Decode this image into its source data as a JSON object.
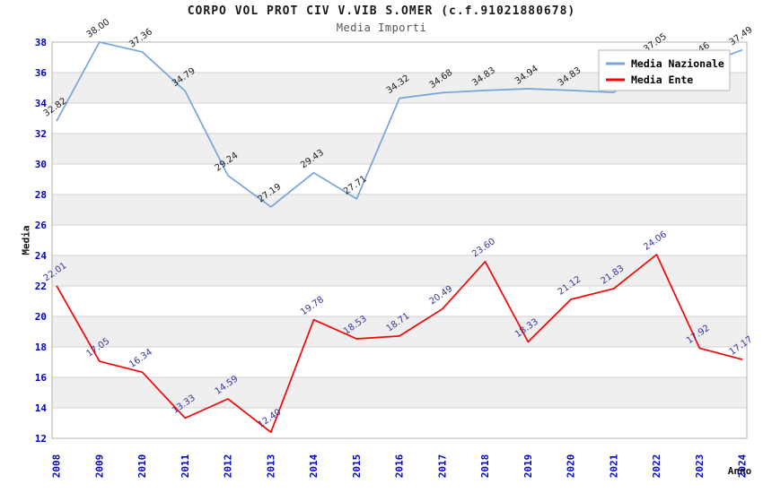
{
  "title": "CORPO VOL PROT CIV V.VIB S.OMER (c.f.91021880678)",
  "subtitle": "Media Importi",
  "colors": {
    "tick_label": "#0000cc",
    "band": "#efefef",
    "grid": "#d2d2d2",
    "plot_border": "#b3b3b3",
    "legend_border": "#b5b5b5",
    "legend_background": "#ffffff",
    "axis_title": "#111111"
  },
  "chart_data": {
    "type": "line",
    "x": [
      "2008",
      "2009",
      "2010",
      "2011",
      "2012",
      "2013",
      "2014",
      "2015",
      "2016",
      "2017",
      "2018",
      "2019",
      "2020",
      "2021",
      "2022",
      "2023",
      "2024"
    ],
    "series": [
      {
        "name": "Media Nazionale",
        "color": "#74a5dc",
        "label_color": "#1a1a1a",
        "values": [
          32.82,
          38.0,
          37.36,
          34.79,
          29.24,
          27.19,
          29.43,
          27.71,
          34.32,
          34.68,
          34.83,
          34.94,
          34.83,
          34.7,
          37.05,
          36.46,
          37.49
        ],
        "point_labels": [
          "32.82",
          "38.00",
          "37.36",
          "34.79",
          "29.24",
          "27.19",
          "29.43",
          "27.71",
          "34.32",
          "34.68",
          "34.83",
          "34.94",
          "34.83",
          "",
          "37.05",
          "36.46",
          "37.49"
        ]
      },
      {
        "name": "Media Ente",
        "color": "#f40404",
        "label_color": "#333399",
        "values": [
          22.01,
          17.05,
          16.34,
          13.33,
          14.59,
          12.4,
          19.78,
          18.53,
          18.71,
          20.49,
          23.6,
          18.33,
          21.12,
          21.83,
          24.06,
          17.92,
          17.17
        ],
        "point_labels": [
          "22.01",
          "17.05",
          "16.34",
          "13.33",
          "14.59",
          "12.40",
          "19.78",
          "18.53",
          "18.71",
          "20.49",
          "23.60",
          "18.33",
          "21.12",
          "21.83",
          "24.06",
          "17.92",
          "17.17"
        ]
      }
    ],
    "xlabel": "Anno",
    "ylabel": "Media",
    "ylim": [
      12,
      38
    ],
    "ytick_step": 2,
    "grid": true,
    "banded_background": true,
    "legend": {
      "position": "top-right",
      "entries": [
        "Media Nazionale",
        "Media Ente"
      ]
    }
  }
}
